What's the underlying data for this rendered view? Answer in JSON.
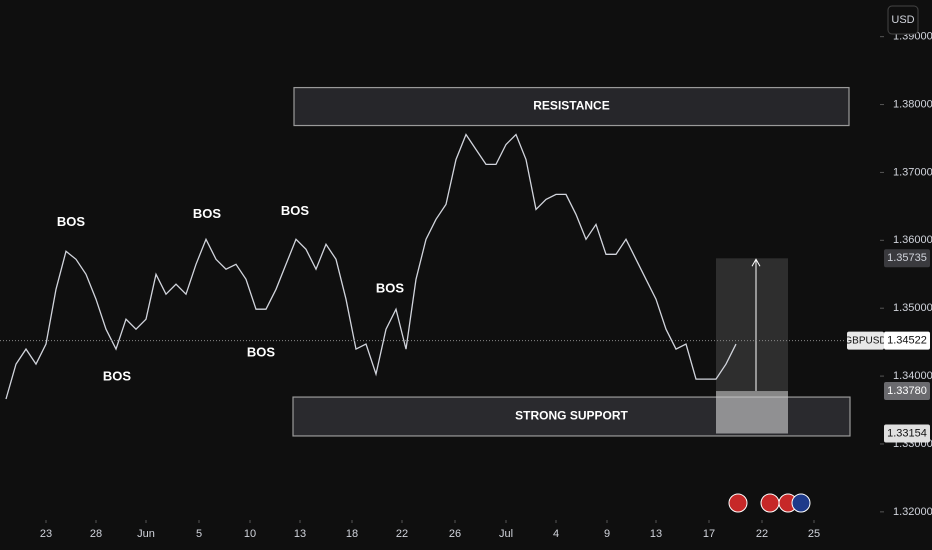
{
  "chart_data": {
    "type": "line",
    "symbol": "GBPUSD",
    "currency": "USD",
    "color": "#d1d4dc",
    "x": [
      -4,
      -3,
      -2,
      -1,
      0,
      1,
      2,
      3,
      4,
      5,
      6,
      7,
      8,
      9,
      10,
      11,
      12,
      13,
      14,
      15,
      16,
      17,
      18,
      19,
      20,
      21,
      22,
      23,
      24,
      25,
      26,
      27,
      28,
      29,
      30,
      31,
      32,
      33,
      34,
      35,
      36,
      37,
      38,
      39,
      40,
      41,
      42,
      43,
      44,
      45,
      46,
      47,
      48,
      49,
      50,
      51,
      52,
      53,
      54,
      55,
      56,
      57,
      58,
      59,
      60,
      61,
      62,
      63,
      64,
      65,
      66,
      67,
      68,
      69
    ],
    "values": [
      1.33662,
      1.34176,
      1.34397,
      1.34176,
      1.34471,
      1.35279,
      1.35838,
      1.35721,
      1.355,
      1.35132,
      1.34691,
      1.34397,
      1.34838,
      1.34691,
      1.34838,
      1.355,
      1.35206,
      1.35353,
      1.35206,
      1.35647,
      1.36015,
      1.35721,
      1.35574,
      1.35647,
      1.35426,
      1.34985,
      1.34985,
      1.35279,
      1.35647,
      1.36015,
      1.35868,
      1.35574,
      1.35941,
      1.35721,
      1.35132,
      1.34397,
      1.34471,
      1.34029,
      1.34691,
      1.34985,
      1.34397,
      1.35426,
      1.36015,
      1.36309,
      1.36529,
      1.37191,
      1.37559,
      1.37338,
      1.37118,
      1.37118,
      1.37412,
      1.37559,
      1.37191,
      1.36456,
      1.36603,
      1.36676,
      1.36676,
      1.36382,
      1.36015,
      1.36235,
      1.35794,
      1.35794,
      1.36015,
      1.35721,
      1.35426,
      1.35132,
      1.34691,
      1.34397,
      1.34471,
      1.33956,
      1.33956,
      1.33956,
      1.34176,
      1.34471
    ],
    "xlim": [
      -4.6,
      79.4
    ],
    "ylim": [
      1.3188,
      1.3954
    ],
    "yticks": [
      {
        "value": 1.39,
        "label": "1.39000"
      },
      {
        "value": 1.38,
        "label": "1.38000"
      },
      {
        "value": 1.37,
        "label": "1.37000"
      },
      {
        "value": 1.36,
        "label": "1.36000"
      },
      {
        "value": 1.35,
        "label": "1.35000"
      },
      {
        "value": 1.34,
        "label": "1.34000"
      },
      {
        "value": 1.33,
        "label": "1.33000"
      },
      {
        "value": 1.32,
        "label": "1.32000"
      }
    ],
    "xticks": [
      {
        "value": 0,
        "label": "23"
      },
      {
        "value": 5,
        "label": "28"
      },
      {
        "value": 10,
        "label": "Jun"
      },
      {
        "value": 15.3,
        "label": "5"
      },
      {
        "value": 20.4,
        "label": "10"
      },
      {
        "value": 25.4,
        "label": "13"
      },
      {
        "value": 30.6,
        "label": "18"
      },
      {
        "value": 35.6,
        "label": "22"
      },
      {
        "value": 40.9,
        "label": "26"
      },
      {
        "value": 46,
        "label": "Jul"
      },
      {
        "value": 51,
        "label": "4"
      },
      {
        "value": 56.1,
        "label": "9"
      },
      {
        "value": 61,
        "label": "13"
      },
      {
        "value": 66.3,
        "label": "17"
      },
      {
        "value": 71.6,
        "label": "22"
      },
      {
        "value": 76.8,
        "label": "25"
      }
    ],
    "zones": [
      {
        "label": "RESISTANCE",
        "top": 1.3825,
        "bottom": 1.37691,
        "x": [
          24.8,
          80.3
        ]
      },
      {
        "label": "STRONG SUPPORT",
        "top": 1.33691,
        "bottom": 1.33118,
        "x": [
          24.7,
          80.4
        ]
      }
    ],
    "annotations": [
      {
        "text": "BOS",
        "x": 2.5,
        "y": 1.36265
      },
      {
        "text": "BOS",
        "x": 7.1,
        "y": 1.33985
      },
      {
        "text": "BOS",
        "x": 16.1,
        "y": 1.36382
      },
      {
        "text": "BOS",
        "x": 21.5,
        "y": 1.34338
      },
      {
        "text": "BOS",
        "x": 24.9,
        "y": 1.36426
      },
      {
        "text": "BOS",
        "x": 34.4,
        "y": 1.35279
      }
    ],
    "position": {
      "x": [
        67,
        74.2
      ],
      "target": {
        "value": 1.35735,
        "label": "1.35735"
      },
      "entry": {
        "value": 1.3378,
        "label": "1.33780"
      },
      "stop": {
        "value": 1.33154,
        "label": "1.33154"
      }
    },
    "last_price": {
      "value": 1.34522,
      "label": "1.34522"
    }
  }
}
